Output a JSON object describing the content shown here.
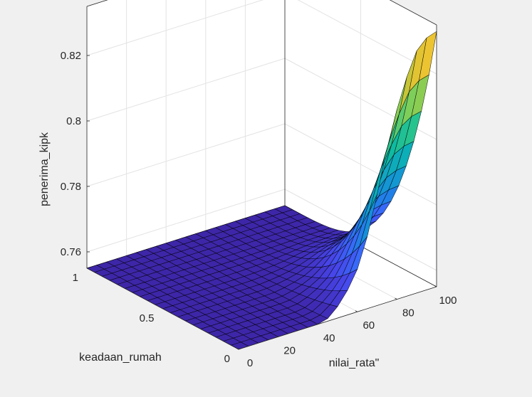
{
  "chart_data": {
    "type": "surface",
    "title": "",
    "xlabel": "nilai_rata\"",
    "ylabel": "keadaan_rumah",
    "zlabel": "penerima_kipk",
    "xlim": [
      0,
      100
    ],
    "ylim": [
      0,
      1
    ],
    "zlim": [
      0.755,
      0.835
    ],
    "x_ticks": [
      "0",
      "20",
      "40",
      "60",
      "80",
      "100"
    ],
    "y_ticks": [
      "0",
      "0.5",
      "1"
    ],
    "z_ticks": [
      "0.76",
      "0.78",
      "0.8",
      "0.82"
    ],
    "grid": true,
    "colormap": "parula",
    "x": [
      0,
      5,
      10,
      15,
      20,
      25,
      30,
      35,
      40,
      45,
      50,
      55,
      60,
      65,
      70,
      75,
      80,
      85,
      90,
      95,
      100
    ],
    "y": [
      0,
      0.05,
      0.1,
      0.15,
      0.2,
      0.25,
      0.3,
      0.35,
      0.4,
      0.45,
      0.5,
      0.55,
      0.6,
      0.65,
      0.7,
      0.75,
      0.8,
      0.85,
      0.9,
      0.95,
      1
    ],
    "baseline_z": 0.755,
    "profile_at_y0": [
      [
        0,
        0.755
      ],
      [
        40,
        0.755
      ],
      [
        45,
        0.7558
      ],
      [
        50,
        0.7585
      ],
      [
        55,
        0.7625
      ],
      [
        60,
        0.768
      ],
      [
        65,
        0.777
      ],
      [
        70,
        0.789
      ],
      [
        75,
        0.802
      ],
      [
        80,
        0.813
      ],
      [
        85,
        0.822
      ],
      [
        90,
        0.829
      ],
      [
        95,
        0.832
      ],
      [
        100,
        0.833
      ]
    ],
    "surface_description": "z = 0.755 + (profile(x) - 0.755) * (1 - y)^4"
  }
}
